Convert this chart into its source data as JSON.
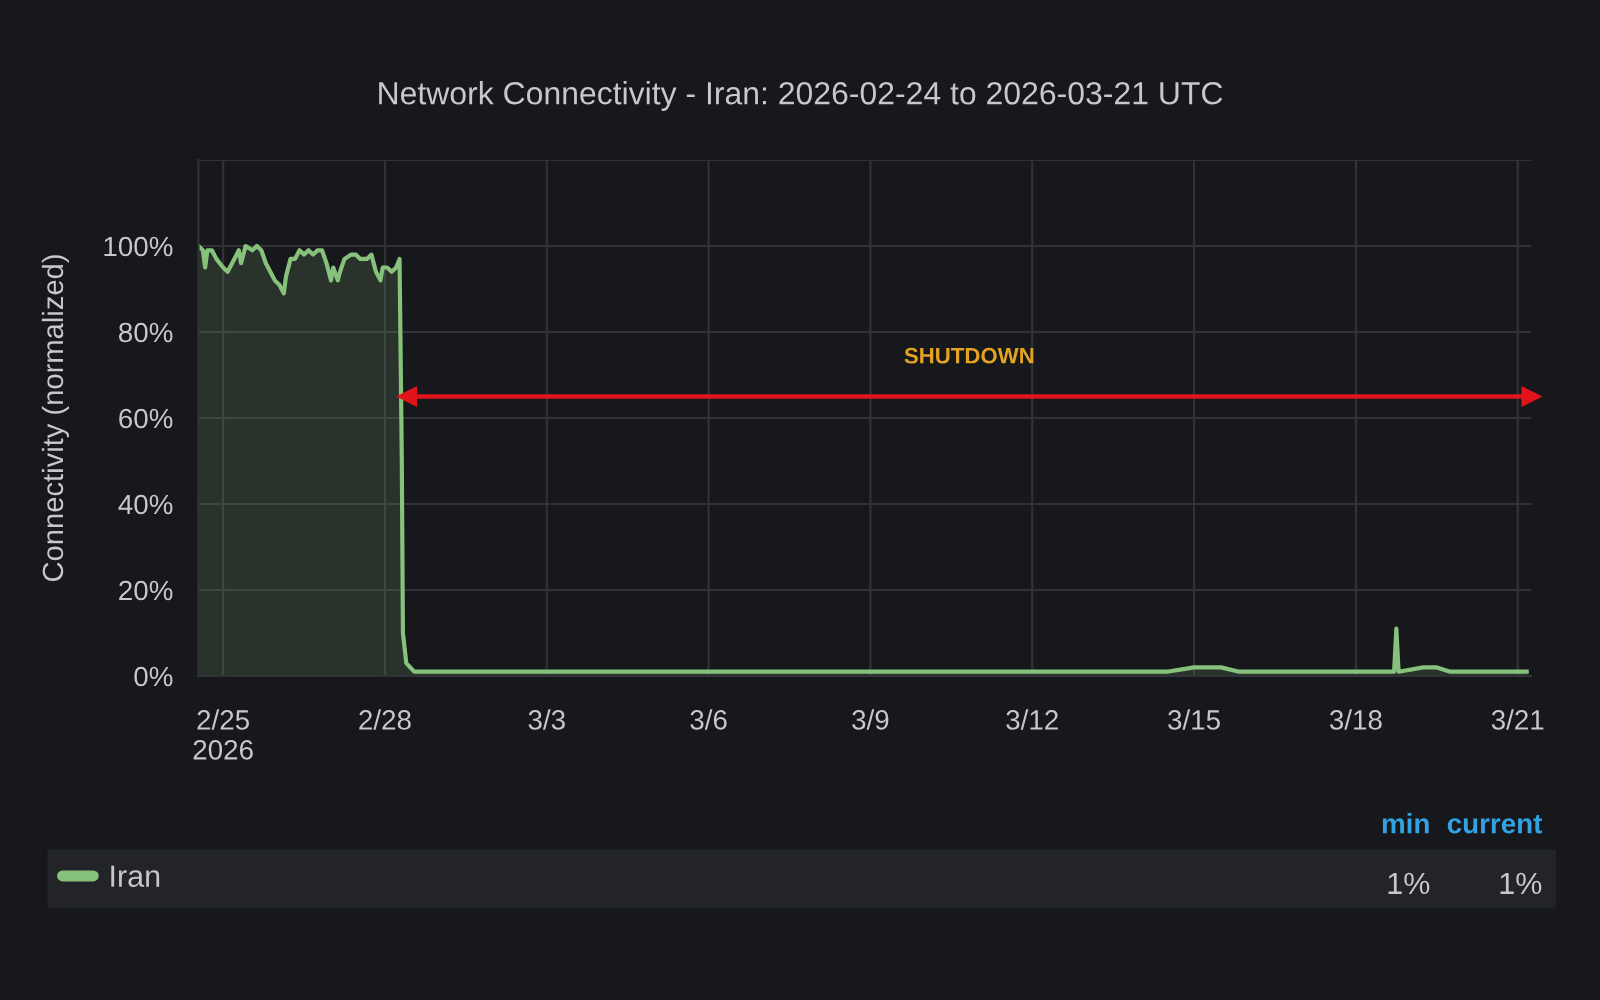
{
  "chart_data": {
    "type": "area",
    "title": "Network Connectivity - Iran: 2026-02-24 to 2026-03-21 UTC",
    "ylabel": "Connectivity (normalized)",
    "series": [
      {
        "name": "Iran",
        "color": "#86c27c",
        "x": [
          "2026-02-24T13:00",
          "2026-02-24T15:00",
          "2026-02-24T16:00",
          "2026-02-24T17:00",
          "2026-02-24T19:00",
          "2026-02-24T21:00",
          "2026-02-25T00:00",
          "2026-02-25T02:00",
          "2026-02-25T04:00",
          "2026-02-25T07:00",
          "2026-02-25T08:00",
          "2026-02-25T10:00",
          "2026-02-25T13:00",
          "2026-02-25T15:00",
          "2026-02-25T17:00",
          "2026-02-25T19:00",
          "2026-02-25T21:00",
          "2026-02-25T23:00",
          "2026-02-26T01:00",
          "2026-02-26T03:00",
          "2026-02-26T04:00",
          "2026-02-26T06:00",
          "2026-02-26T08:00",
          "2026-02-26T10:00",
          "2026-02-26T12:00",
          "2026-02-26T14:00",
          "2026-02-26T16:00",
          "2026-02-26T18:00",
          "2026-02-26T20:00",
          "2026-02-26T22:00",
          "2026-02-27T00:00",
          "2026-02-27T01:00",
          "2026-02-27T03:00",
          "2026-02-27T04:00",
          "2026-02-27T06:00",
          "2026-02-27T09:00",
          "2026-02-27T11:00",
          "2026-02-27T13:00",
          "2026-02-27T16:00",
          "2026-02-27T18:00",
          "2026-02-27T20:00",
          "2026-02-27T22:00",
          "2026-02-27T23:00",
          "2026-02-28T01:00",
          "2026-02-28T03:00",
          "2026-02-28T05:00",
          "2026-02-28T06:30",
          "2026-02-28T07:30",
          "2026-02-28T08:00",
          "2026-02-28T09:30",
          "2026-02-28T13:00",
          "2026-02-28T18:00",
          "2026-03-01T06:00",
          "2026-03-01T18:00",
          "2026-03-02T06:00",
          "2026-03-02T18:00",
          "2026-03-03T12:00",
          "2026-03-04T12:00",
          "2026-03-05T12:00",
          "2026-03-06T12:00",
          "2026-03-07T12:00",
          "2026-03-08T12:00",
          "2026-03-09T12:00",
          "2026-03-10T12:00",
          "2026-03-11T12:00",
          "2026-03-12T12:00",
          "2026-03-13T12:00",
          "2026-03-14T12:00",
          "2026-03-15T00:00",
          "2026-03-15T12:00",
          "2026-03-15T20:00",
          "2026-03-16T12:00",
          "2026-03-17T12:00",
          "2026-03-18T06:00",
          "2026-03-18T17:00",
          "2026-03-18T18:00",
          "2026-03-18T19:00",
          "2026-03-19T06:00",
          "2026-03-19T12:00",
          "2026-03-19T18:00",
          "2026-03-20T12:00",
          "2026-03-21T04:00"
        ],
        "values": [
          100,
          99,
          95,
          99,
          99,
          97,
          95,
          94,
          96,
          99,
          96,
          100,
          99,
          100,
          99,
          96,
          94,
          92,
          91,
          89,
          93,
          97,
          97,
          99,
          98,
          99,
          98,
          99,
          99,
          96,
          92,
          95,
          92,
          94,
          97,
          98,
          98,
          97,
          97,
          98,
          94,
          92,
          95,
          95,
          94,
          95,
          97,
          50,
          10,
          3,
          1,
          1,
          1,
          1,
          1,
          1,
          1,
          1,
          1,
          1,
          1,
          1,
          1,
          1,
          1,
          1,
          1,
          1,
          2,
          2,
          1,
          1,
          1,
          1,
          1,
          11,
          1,
          2,
          2,
          1,
          1,
          1
        ]
      },
      {
        "name": "SHUTDOWN",
        "type": "line",
        "color": "#e0141a",
        "marker": "triangle",
        "x": [
          "2026-02-28T10:00",
          "2026-03-21T06:00"
        ],
        "values": [
          65,
          65
        ]
      }
    ],
    "xlim": [
      "2026-02-24T13:00",
      "2026-03-21T06:00"
    ],
    "xticks": [
      {
        "value": "2026-02-25",
        "label": "2/25\n2026"
      },
      {
        "value": "2026-02-28",
        "label": "2/28"
      },
      {
        "value": "2026-03-03",
        "label": "3/3"
      },
      {
        "value": "2026-03-06",
        "label": "3/6"
      },
      {
        "value": "2026-03-09",
        "label": "3/9"
      },
      {
        "value": "2026-03-12",
        "label": "3/12"
      },
      {
        "value": "2026-03-15",
        "label": "3/15"
      },
      {
        "value": "2026-03-18",
        "label": "3/18"
      },
      {
        "value": "2026-03-21",
        "label": "3/21"
      }
    ],
    "ylim": [
      0,
      120
    ],
    "yticks": [
      {
        "value": 0,
        "label": "0%"
      },
      {
        "value": 20,
        "label": "20%"
      },
      {
        "value": 40,
        "label": "40%"
      },
      {
        "value": 60,
        "label": "60%"
      },
      {
        "value": 80,
        "label": "80%"
      },
      {
        "value": 100,
        "label": "100%"
      },
      {
        "value": 120,
        "label": null
      }
    ],
    "annotations": [
      "min",
      "current",
      "1%",
      "1%"
    ],
    "grid": true,
    "legend": "bottom"
  }
}
